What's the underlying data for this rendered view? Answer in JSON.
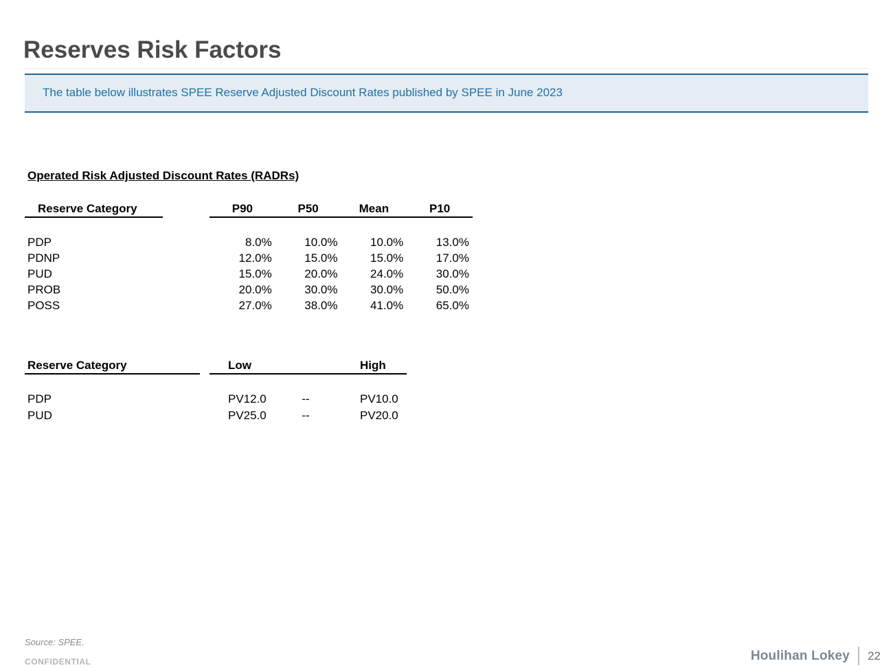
{
  "slide": {
    "title": "Reserves Risk Factors",
    "banner": {
      "text": "The table below illustrates SPEE Reserve Adjusted Discount Rates published by SPEE in June 2023"
    },
    "section_heading": "Operated Risk Adjusted Discount Rates (RADRs)",
    "radr_table": {
      "category_header": "Reserve Category",
      "columns": [
        "P90",
        "P50",
        "Mean",
        "P10"
      ],
      "rows": [
        {
          "category": "PDP",
          "values": [
            "8.0%",
            "10.0%",
            "10.0%",
            "13.0%"
          ]
        },
        {
          "category": "PDNP",
          "values": [
            "12.0%",
            "15.0%",
            "15.0%",
            "17.0%"
          ]
        },
        {
          "category": "PUD",
          "values": [
            "15.0%",
            "20.0%",
            "24.0%",
            "30.0%"
          ]
        },
        {
          "category": "PROB",
          "values": [
            "20.0%",
            "30.0%",
            "30.0%",
            "50.0%"
          ]
        },
        {
          "category": "POSS",
          "values": [
            "27.0%",
            "38.0%",
            "41.0%",
            "65.0%"
          ]
        }
      ]
    },
    "pv_table": {
      "category_header": "Reserve Category",
      "columns": [
        "Low",
        "High"
      ],
      "rows": [
        {
          "category": "PDP",
          "low": "PV12.0",
          "separator": "--",
          "high": "PV10.0"
        },
        {
          "category": "PUD",
          "low": "PV25.0",
          "separator": "--",
          "high": "PV20.0"
        }
      ]
    },
    "footer": {
      "source": "Source: SPEE.",
      "confidential": "CONFIDENTIAL",
      "brand": "Houlihan Lokey",
      "page_number": "22"
    },
    "colors": {
      "accent_blue": "#1b6492",
      "banner_bg": "#e4edf4",
      "banner_text": "#2070a4",
      "title_gray": "#4a4a4a",
      "brand_gray": "#7d8695"
    }
  }
}
